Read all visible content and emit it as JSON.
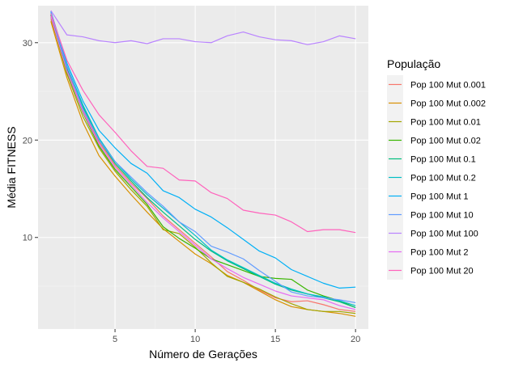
{
  "chart_data": {
    "type": "line",
    "xlabel": "Número de Gerações",
    "ylabel": "Média FITNESS",
    "xlim": [
      0.2,
      20.8
    ],
    "ylim": [
      0.6,
      33.8
    ],
    "x_ticks": [
      5,
      10,
      15,
      20
    ],
    "y_ticks": [
      10,
      20,
      30
    ],
    "x_tick_labels": [
      "5",
      "10",
      "15",
      "20"
    ],
    "y_tick_labels": [
      "10",
      "20",
      "30"
    ],
    "grid": true,
    "legend_title": "População",
    "legend_position": "right",
    "x": [
      1,
      2,
      3,
      4,
      5,
      6,
      7,
      8,
      9,
      10,
      11,
      12,
      13,
      14,
      15,
      16,
      17,
      18,
      19,
      20
    ],
    "series": [
      {
        "name": "Pop 100 Mut 0.001",
        "color": "#F8766D",
        "values": [
          32.4,
          27.2,
          23.0,
          19.8,
          17.4,
          15.6,
          14.0,
          12.2,
          10.8,
          9.4,
          8.0,
          6.5,
          5.6,
          4.6,
          3.8,
          3.4,
          3.5,
          3.1,
          2.6,
          2.4
        ]
      },
      {
        "name": "Pop 100 Mut 0.002",
        "color": "#D89000",
        "values": [
          32.2,
          26.4,
          21.8,
          18.4,
          16.3,
          14.4,
          12.6,
          10.9,
          9.6,
          8.3,
          7.3,
          6.1,
          5.4,
          4.5,
          3.6,
          2.9,
          2.6,
          2.4,
          2.2,
          1.9
        ]
      },
      {
        "name": "Pop 100 Mut 0.01",
        "color": "#A3A500",
        "values": [
          32.6,
          26.8,
          22.4,
          19.2,
          16.8,
          14.9,
          13.2,
          10.8,
          10.4,
          9.0,
          7.4,
          6.0,
          5.4,
          4.7,
          3.9,
          3.2,
          2.6,
          2.4,
          2.4,
          2.2
        ]
      },
      {
        "name": "Pop 100 Mut 0.02",
        "color": "#39B600",
        "values": [
          32.8,
          27.0,
          22.8,
          19.4,
          17.0,
          15.2,
          13.4,
          11.1,
          9.9,
          8.9,
          7.8,
          7.2,
          6.6,
          6.0,
          5.8,
          5.7,
          4.6,
          4.0,
          3.5,
          2.8
        ]
      },
      {
        "name": "Pop 100 Mut 0.1",
        "color": "#00BF7D",
        "values": [
          32.9,
          27.4,
          23.4,
          20.0,
          17.6,
          15.8,
          14.1,
          12.6,
          11.2,
          9.8,
          8.6,
          7.6,
          6.8,
          6.0,
          5.2,
          4.6,
          4.2,
          3.8,
          3.4,
          2.8
        ]
      },
      {
        "name": "Pop 100 Mut 0.2",
        "color": "#00BFC4",
        "values": [
          33.0,
          27.6,
          23.6,
          20.2,
          17.8,
          16.0,
          14.4,
          13.0,
          11.6,
          10.2,
          8.7,
          7.7,
          6.9,
          6.1,
          5.3,
          4.7,
          4.2,
          3.9,
          3.5,
          3.0
        ]
      },
      {
        "name": "Pop 100 Mut 1",
        "color": "#00B0F6",
        "values": [
          33.2,
          27.9,
          24.0,
          21.0,
          19.2,
          17.6,
          16.6,
          14.8,
          14.1,
          12.9,
          12.1,
          11.0,
          9.8,
          8.6,
          7.9,
          6.7,
          6.0,
          5.3,
          4.8,
          4.9
        ]
      },
      {
        "name": "Pop 100 Mut 10",
        "color": "#619CFF",
        "values": [
          33.1,
          27.6,
          23.2,
          20.0,
          17.8,
          16.2,
          14.6,
          13.2,
          11.6,
          10.6,
          9.1,
          8.5,
          7.8,
          6.6,
          5.5,
          4.4,
          4.0,
          3.8,
          3.6,
          3.3
        ]
      },
      {
        "name": "Pop 100 Mut 100",
        "color": "#B983FF",
        "values": [
          33.3,
          30.8,
          30.6,
          30.2,
          30.0,
          30.2,
          29.9,
          30.4,
          30.4,
          30.1,
          30.0,
          30.7,
          31.1,
          30.6,
          30.3,
          30.2,
          29.8,
          30.1,
          30.7,
          30.4
        ]
      },
      {
        "name": "Pop 100 Mut 2",
        "color": "#E76BF3",
        "values": [
          32.7,
          27.1,
          22.9,
          19.6,
          17.2,
          15.4,
          13.6,
          12.0,
          10.6,
          9.2,
          7.8,
          6.8,
          5.9,
          5.2,
          4.5,
          4.0,
          3.8,
          3.6,
          3.0,
          2.6
        ]
      },
      {
        "name": "Pop 100 Mut 20",
        "color": "#FF62BC",
        "values": [
          33.0,
          28.2,
          25.1,
          22.6,
          20.8,
          18.9,
          17.3,
          17.1,
          15.9,
          15.8,
          14.6,
          14.0,
          12.8,
          12.5,
          12.3,
          11.6,
          10.6,
          10.8,
          10.8,
          10.5
        ]
      }
    ]
  }
}
